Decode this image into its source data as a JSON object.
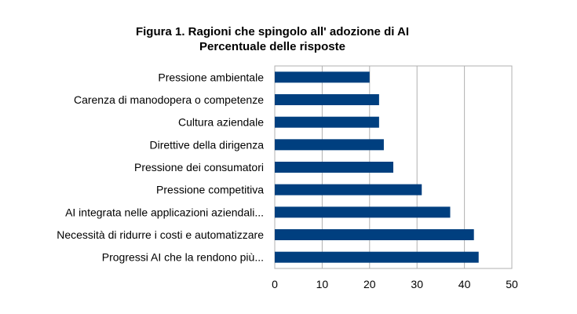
{
  "chart_data": {
    "type": "bar",
    "orientation": "horizontal",
    "title": "Figura 1. Ragioni che spingolo all' adozione di AI",
    "subtitle": "Percentuale delle risposte",
    "categories": [
      "Pressione ambientale",
      "Carenza di manodopera o competenze",
      "Cultura aziendale",
      "Direttive della dirigenza",
      "Pressione dei consumatori",
      "Pressione competitiva",
      "AI integrata nelle applicazioni aziendali...",
      "Necessità di ridurre i costi e automatizzare",
      "Progressi AI che la rendono più..."
    ],
    "values": [
      20,
      22,
      22,
      23,
      25,
      31,
      37,
      42,
      43
    ],
    "xlim": [
      0,
      50
    ],
    "xticks": [
      "0",
      "10",
      "20",
      "30",
      "40",
      "50"
    ],
    "xlabel": "",
    "ylabel": "",
    "grid": "vertical",
    "legend": "none",
    "bar_color": "#003f7f",
    "grid_color": "#b0b0b0"
  }
}
